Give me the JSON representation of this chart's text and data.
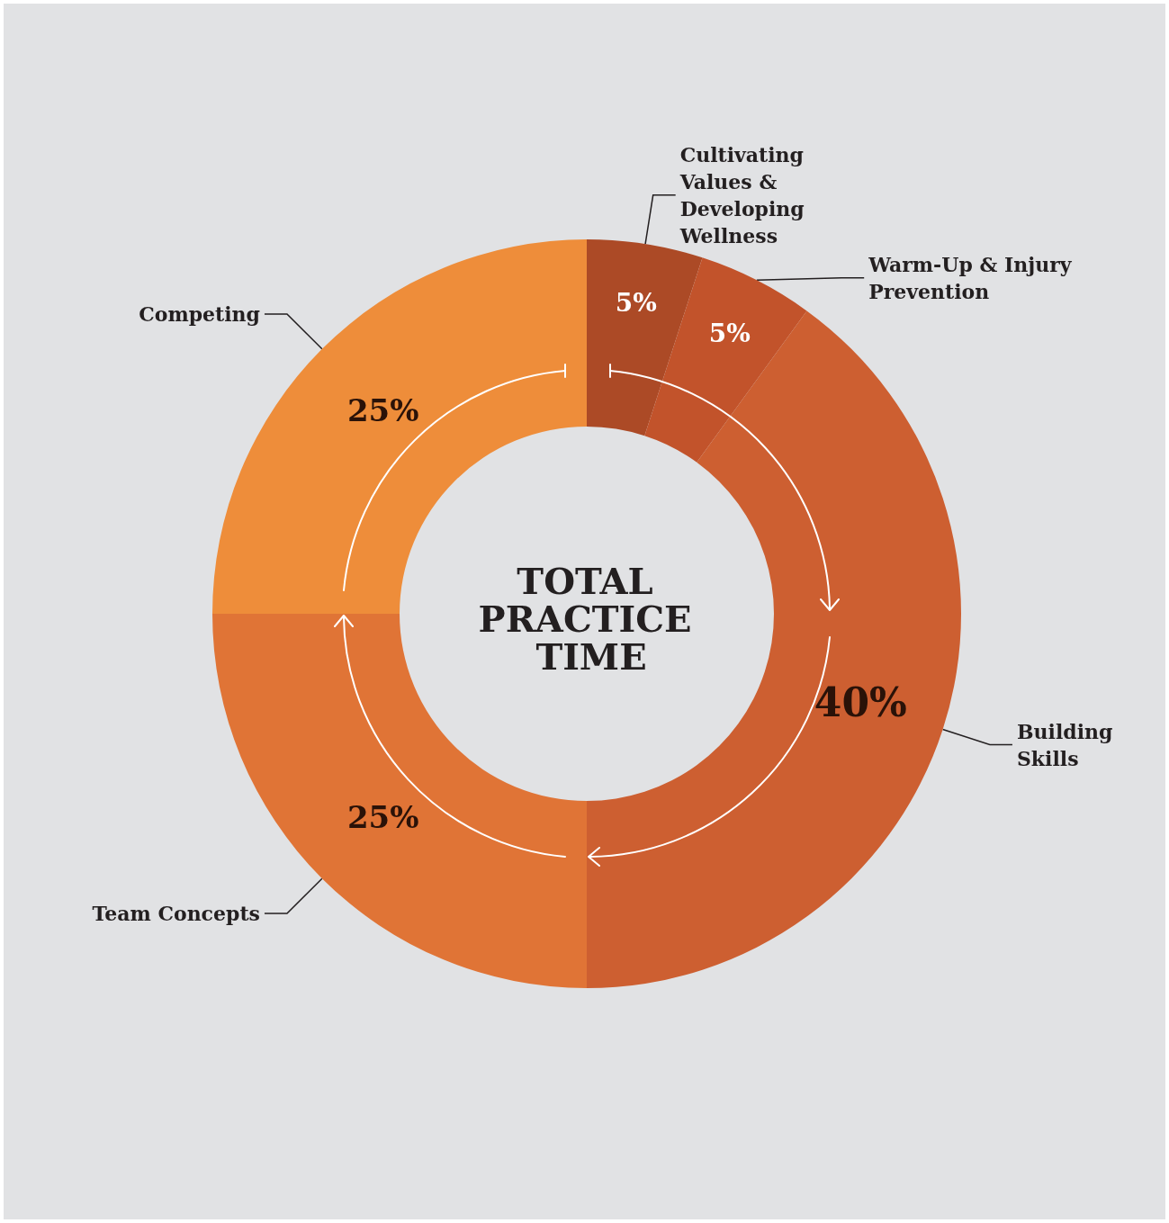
{
  "chart_data": {
    "type": "donut",
    "title": "TOTAL PRACTICE TIME",
    "categories": [
      "Cultivating Values & Developing Wellness",
      "Warm-Up & Injury Prevention",
      "Building Skills",
      "Team Concepts",
      "Competing"
    ],
    "values": [
      5,
      5,
      40,
      25,
      25
    ],
    "colors": [
      "#ac4a26",
      "#c2532b",
      "#cd5f31",
      "#e07436",
      "#ee8d3a"
    ],
    "value_labels": [
      "5%",
      "5%",
      "40%",
      "25%",
      "25%"
    ],
    "legend": false
  }
}
